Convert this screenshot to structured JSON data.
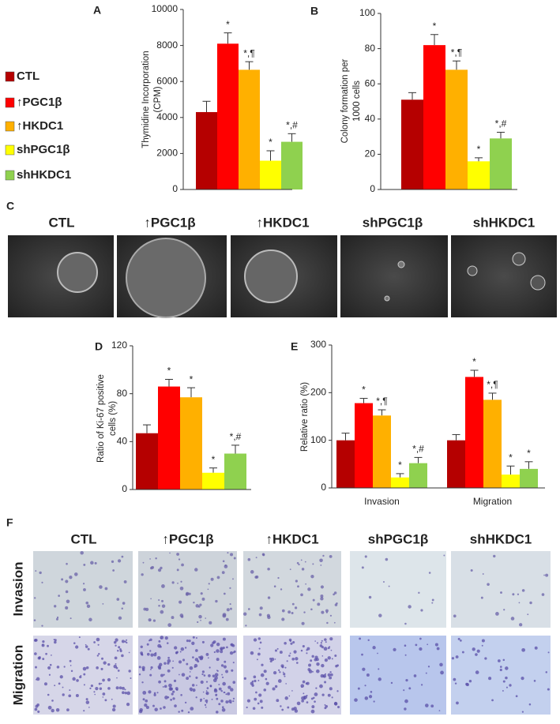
{
  "groups": [
    {
      "name": "CTL",
      "color": "#b50000"
    },
    {
      "name": "↑PGC1β",
      "color": "#ff0000"
    },
    {
      "name": "↑HKDC1",
      "color": "#ffb000"
    },
    {
      "name": "shPGC1β",
      "color": "#ffff00"
    },
    {
      "name": "shHKDC1",
      "color": "#8fd14f"
    }
  ],
  "chart_data": [
    {
      "type": "bar",
      "panel": "A",
      "ylabel": [
        "Thymidine Incorporation",
        "(CPM)"
      ],
      "values": [
        4300,
        8100,
        6650,
        1600,
        2650
      ],
      "errors": [
        600,
        600,
        450,
        550,
        450
      ],
      "annotations": [
        null,
        "*",
        "*,¶",
        "*",
        "*,#"
      ],
      "ylim": [
        0,
        10000
      ],
      "yticks": [
        0,
        2000,
        4000,
        6000,
        8000,
        10000
      ]
    },
    {
      "type": "bar",
      "panel": "B",
      "ylabel": [
        "Colony formation per",
        "1000 cells"
      ],
      "values": [
        51,
        82,
        68,
        16,
        29
      ],
      "errors": [
        4,
        6,
        5,
        2,
        3.5
      ],
      "annotations": [
        null,
        "*",
        "*,¶",
        "*",
        "*,#"
      ],
      "ylim": [
        0,
        100
      ],
      "yticks": [
        0,
        20,
        40,
        60,
        80,
        100
      ]
    },
    {
      "type": "bar",
      "panel": "D",
      "ylabel": [
        "Ratio of Ki-67 positive",
        "cells (%)"
      ],
      "values": [
        47,
        86,
        77,
        14,
        30
      ],
      "errors": [
        7,
        6,
        8,
        4,
        7
      ],
      "annotations": [
        null,
        "*",
        "*",
        "*",
        "*,#"
      ],
      "ylim": [
        0,
        120
      ],
      "yticks": [
        0,
        40,
        80,
        120
      ]
    },
    {
      "type": "grouped_bar",
      "panel": "E",
      "ylabel": [
        "Relative ratio (%)"
      ],
      "categories": [
        "Invasion",
        "Migration"
      ],
      "series": [
        {
          "values": [
            100,
            100
          ],
          "errors": [
            15,
            12
          ],
          "annotations": [
            null,
            null
          ]
        },
        {
          "values": [
            178,
            233
          ],
          "errors": [
            10,
            14
          ],
          "annotations": [
            "*",
            "*"
          ]
        },
        {
          "values": [
            152,
            185
          ],
          "errors": [
            12,
            14
          ],
          "annotations": [
            "*,¶",
            "*,¶"
          ]
        },
        {
          "values": [
            22,
            28
          ],
          "errors": [
            8,
            18
          ],
          "annotations": [
            "*",
            "*"
          ]
        },
        {
          "values": [
            52,
            40
          ],
          "errors": [
            12,
            15
          ],
          "annotations": [
            "*,#",
            "*"
          ]
        }
      ],
      "ylim": [
        0,
        300
      ],
      "yticks": [
        0,
        100,
        200,
        300
      ]
    }
  ],
  "panel_c": {
    "label": "C",
    "columns": [
      "CTL",
      "↑PGC1β",
      "↑HKDC1",
      "shPGC1β",
      "shHKDC1"
    ]
  },
  "panel_f": {
    "label": "F",
    "columns": [
      "CTL",
      "↑PGC1β",
      "↑HKDC1",
      "shPGC1β",
      "shHKDC1"
    ],
    "rows": [
      "Invasion",
      "Migration"
    ]
  }
}
